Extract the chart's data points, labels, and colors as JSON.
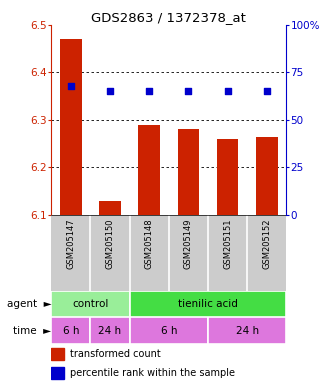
{
  "title": "GDS2863 / 1372378_at",
  "samples": [
    "GSM205147",
    "GSM205150",
    "GSM205148",
    "GSM205149",
    "GSM205151",
    "GSM205152"
  ],
  "bar_values": [
    6.47,
    6.13,
    6.29,
    6.28,
    6.26,
    6.265
  ],
  "percentile_values": [
    68,
    65,
    65,
    65,
    65,
    65
  ],
  "ylim_left": [
    6.1,
    6.5
  ],
  "ylim_right": [
    0,
    100
  ],
  "yticks_left": [
    6.1,
    6.2,
    6.3,
    6.4,
    6.5
  ],
  "yticks_right": [
    0,
    25,
    50,
    75,
    100
  ],
  "bar_color": "#cc2200",
  "dot_color": "#0000cc",
  "agent_row": [
    {
      "label": "control",
      "span": [
        0,
        2
      ],
      "color": "#99ee99"
    },
    {
      "label": "tienilic acid",
      "span": [
        2,
        6
      ],
      "color": "#44dd44"
    }
  ],
  "time_row": [
    {
      "label": "6 h",
      "span": [
        0,
        1
      ],
      "color": "#dd77dd"
    },
    {
      "label": "24 h",
      "span": [
        1,
        2
      ],
      "color": "#dd77dd"
    },
    {
      "label": "6 h",
      "span": [
        2,
        4
      ],
      "color": "#dd77dd"
    },
    {
      "label": "24 h",
      "span": [
        4,
        6
      ],
      "color": "#dd77dd"
    }
  ],
  "legend_bar_label": "transformed count",
  "legend_dot_label": "percentile rank within the sample",
  "tick_color_left": "#cc2200",
  "tick_color_right": "#0000cc",
  "background_xticklabels": "#cccccc"
}
